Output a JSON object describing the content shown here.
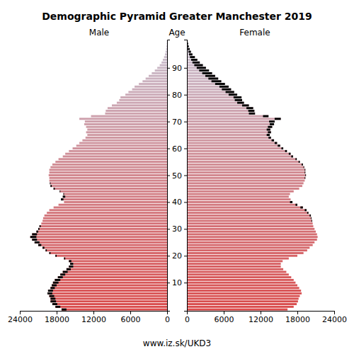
{
  "chart_data": {
    "type": "bar",
    "orientation": "horizontal",
    "title": "Demographic Pyramid Greater Manchester 2019",
    "y_label": "Age",
    "source": "www.iz.sk/UKD3",
    "x": [
      0,
      1,
      2,
      3,
      4,
      5,
      6,
      7,
      8,
      9,
      10,
      11,
      12,
      13,
      14,
      15,
      16,
      17,
      18,
      19,
      20,
      21,
      22,
      23,
      24,
      25,
      26,
      27,
      28,
      29,
      30,
      31,
      32,
      33,
      34,
      35,
      36,
      37,
      38,
      39,
      40,
      41,
      42,
      43,
      44,
      45,
      46,
      47,
      48,
      49,
      50,
      51,
      52,
      53,
      54,
      55,
      56,
      57,
      58,
      59,
      60,
      61,
      62,
      63,
      64,
      65,
      66,
      67,
      68,
      69,
      70,
      71,
      72,
      73,
      74,
      75,
      76,
      77,
      78,
      79,
      80,
      81,
      82,
      83,
      84,
      85,
      86,
      87,
      88,
      89,
      90,
      91,
      92,
      93,
      94,
      95,
      96,
      97,
      98,
      99,
      100
    ],
    "series": [
      {
        "name": "Male",
        "values": [
          17200,
          18200,
          18700,
          19000,
          19000,
          19200,
          19500,
          19400,
          19000,
          18800,
          18600,
          18300,
          17800,
          17400,
          17000,
          16400,
          16000,
          15800,
          16000,
          16800,
          18200,
          19200,
          19800,
          20300,
          21000,
          21600,
          22000,
          22300,
          22000,
          21300,
          21000,
          20800,
          20500,
          20300,
          20200,
          20000,
          19600,
          19200,
          18500,
          17700,
          16800,
          17300,
          17000,
          16900,
          17500,
          18500,
          19000,
          19100,
          19200,
          19200,
          19300,
          19200,
          19200,
          19000,
          18700,
          18200,
          17700,
          17000,
          16600,
          16000,
          15400,
          14800,
          14300,
          13800,
          13300,
          13000,
          13200,
          13000,
          13200,
          13500,
          13400,
          14300,
          12400,
          10100,
          10000,
          9700,
          9000,
          8200,
          7800,
          7600,
          6800,
          6300,
          5700,
          5300,
          4600,
          4000,
          3500,
          3000,
          2500,
          2000,
          1600,
          1200,
          900,
          700,
          500,
          350,
          250,
          150,
          100,
          60,
          40
        ]
      },
      {
        "name": "Female",
        "values": [
          16400,
          17400,
          17900,
          18100,
          18200,
          18400,
          18700,
          18600,
          18300,
          18000,
          17700,
          17400,
          17000,
          16600,
          16200,
          15700,
          15300,
          15300,
          15600,
          16600,
          18000,
          19000,
          19600,
          20000,
          20500,
          20800,
          21200,
          21300,
          21200,
          21000,
          20800,
          20600,
          20500,
          20400,
          20300,
          20200,
          19800,
          19500,
          18900,
          18000,
          17200,
          16900,
          16600,
          16800,
          17400,
          18300,
          18800,
          19000,
          19200,
          19300,
          19400,
          19300,
          19300,
          19100,
          18900,
          18400,
          17900,
          17300,
          16900,
          16300,
          15700,
          15200,
          14700,
          14200,
          13700,
          13500,
          13700,
          13600,
          13900,
          14200,
          14300,
          15300,
          13300,
          11100,
          11000,
          10800,
          10100,
          9300,
          9000,
          8900,
          8200,
          7700,
          7200,
          6800,
          6200,
          5600,
          5100,
          4600,
          4100,
          3600,
          3100,
          2600,
          2100,
          1700,
          1300,
          900,
          650,
          450,
          300,
          200,
          130
        ]
      }
    ],
    "xlim": [
      0,
      24000
    ],
    "xticks": [
      0,
      6000,
      12000,
      18000,
      24000
    ],
    "ylim": [
      -0.5,
      100.5
    ],
    "yticks": [
      10,
      20,
      30,
      40,
      50,
      60,
      70,
      80,
      90
    ]
  }
}
